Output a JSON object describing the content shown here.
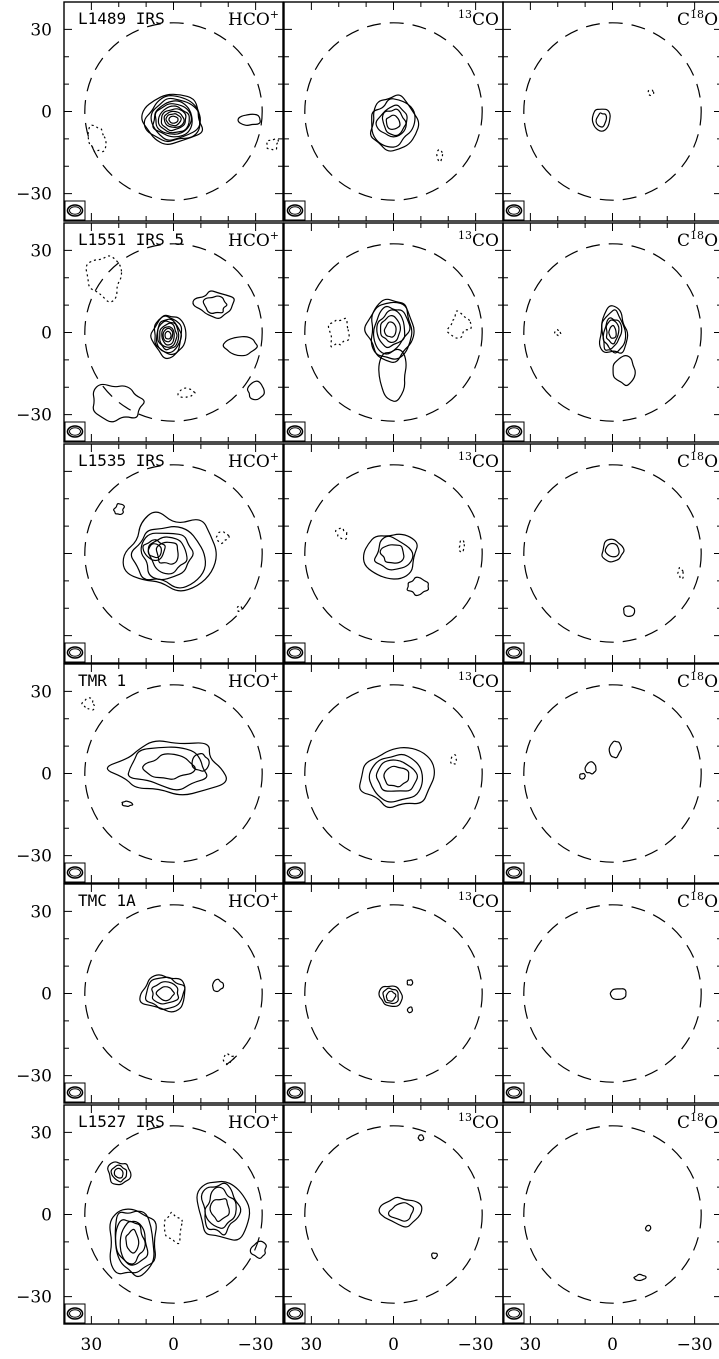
{
  "figure": {
    "rows": [
      {
        "source": "L1489 IRS",
        "y_ticks_shown": true
      },
      {
        "source": "L1551 IRS 5",
        "y_ticks_shown": true
      },
      {
        "source": "L1535 IRS",
        "y_ticks_shown": false
      },
      {
        "source": "TMR 1",
        "y_ticks_shown": true
      },
      {
        "source": "TMC 1A",
        "y_ticks_shown": true
      },
      {
        "source": "L1527 IRS",
        "y_ticks_shown": true
      }
    ],
    "columns": [
      {
        "molecule": "HCO",
        "sup": "+",
        "sup_first": false
      },
      {
        "molecule": "CO",
        "sup": "13",
        "sup_first": true
      },
      {
        "molecule": "O",
        "sup": "18",
        "sup_first": true,
        "prefix": "C"
      }
    ],
    "axis_range": [
      40,
      -40
    ],
    "tick_labels": [
      "30",
      "0",
      "−30"
    ],
    "tick_values": [
      30,
      0,
      -30
    ]
  }
}
